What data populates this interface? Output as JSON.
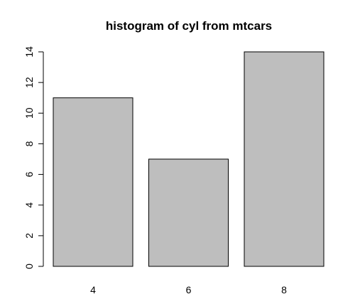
{
  "chart_data": {
    "type": "bar",
    "title": "histogram of cyl from mtcars",
    "xlabel": "",
    "ylabel": "",
    "categories": [
      "4",
      "6",
      "8"
    ],
    "values": [
      11,
      7,
      14
    ],
    "ylim": [
      0,
      14
    ],
    "yticks": [
      "0",
      "2",
      "4",
      "6",
      "8",
      "10",
      "12",
      "14"
    ],
    "grid": false,
    "legend": "none",
    "bar_color": "#bebebe",
    "bar_edge_color": "#000000"
  }
}
